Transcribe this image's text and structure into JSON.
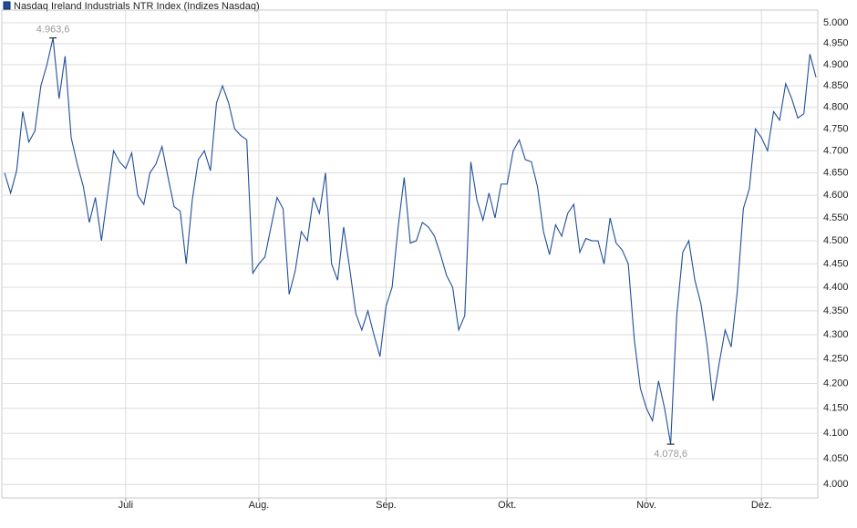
{
  "chart_data": {
    "type": "line",
    "log_scale": true,
    "grid": true,
    "legend": "top-left",
    "categories": [
      null,
      null,
      null,
      null,
      null,
      null,
      null,
      null,
      null,
      null,
      null,
      null,
      null,
      null,
      null,
      null,
      null,
      null,
      null,
      null,
      "Juli",
      null,
      null,
      null,
      null,
      null,
      null,
      null,
      null,
      null,
      null,
      null,
      null,
      null,
      null,
      null,
      null,
      null,
      null,
      null,
      null,
      null,
      "Aug.",
      null,
      null,
      null,
      null,
      null,
      null,
      null,
      null,
      null,
      null,
      null,
      null,
      null,
      null,
      null,
      null,
      null,
      null,
      null,
      null,
      "Sep.",
      null,
      null,
      null,
      null,
      null,
      null,
      null,
      null,
      null,
      null,
      null,
      null,
      null,
      null,
      null,
      null,
      null,
      null,
      null,
      "Okt.",
      null,
      null,
      null,
      null,
      null,
      null,
      null,
      null,
      null,
      null,
      null,
      null,
      null,
      null,
      null,
      null,
      null,
      null,
      null,
      null,
      null,
      null,
      "Nov.",
      null,
      null,
      null,
      null,
      null,
      null,
      null,
      null,
      null,
      null,
      null,
      null,
      null,
      null,
      null,
      null,
      null,
      null,
      "Dez.",
      null,
      null,
      null,
      null,
      null,
      null,
      null,
      null,
      null
    ],
    "series": [
      {
        "name": "Nasdaq Ireland Industrials NTR Index  (Indizes Nasdaq)",
        "color": "#1f4f99",
        "values": [
          4650,
          4605,
          4655,
          4790,
          4720,
          4745,
          4850,
          4900,
          4963.6,
          4820,
          4920,
          4730,
          4670,
          4620,
          4540,
          4595,
          4500,
          4600,
          4700,
          4675,
          4660,
          4695,
          4600,
          4580,
          4650,
          4670,
          4710,
          4640,
          4575,
          4565,
          4450,
          4590,
          4680,
          4700,
          4655,
          4810,
          4850,
          4810,
          4750,
          4735,
          4725,
          4430,
          4450,
          4465,
          4530,
          4595,
          4570,
          4385,
          4435,
          4520,
          4500,
          4595,
          4560,
          4650,
          4450,
          4415,
          4530,
          4440,
          4345,
          4310,
          4350,
          4300,
          4255,
          4360,
          4400,
          4530,
          4640,
          4495,
          4500,
          4540,
          4530,
          4510,
          4470,
          4425,
          4400,
          4310,
          4340,
          4675,
          4590,
          4545,
          4605,
          4550,
          4625,
          4625,
          4700,
          4725,
          4680,
          4675,
          4620,
          4520,
          4470,
          4535,
          4510,
          4560,
          4580,
          4475,
          4505,
          4500,
          4500,
          4450,
          4550,
          4495,
          4480,
          4450,
          4290,
          4190,
          4150,
          4125,
          4205,
          4150,
          4078.6,
          4340,
          4475,
          4500,
          4415,
          4365,
          4280,
          4165,
          4240,
          4310,
          4275,
          4390,
          4570,
          4615,
          4750,
          4730,
          4700,
          4790,
          4770,
          4855,
          4820,
          4775,
          4785,
          4925,
          4870
        ],
        "value_labels": [
          null,
          null,
          null,
          null,
          null,
          null,
          null,
          null,
          "4.963,6",
          null,
          null,
          null,
          null,
          null,
          null,
          null,
          null,
          null,
          null,
          null,
          null,
          null,
          null,
          null,
          null,
          null,
          null,
          null,
          null,
          null,
          null,
          null,
          null,
          null,
          null,
          null,
          null,
          null,
          null,
          null,
          null,
          null,
          null,
          null,
          null,
          null,
          null,
          null,
          null,
          null,
          null,
          null,
          null,
          null,
          null,
          null,
          null,
          null,
          null,
          null,
          null,
          null,
          null,
          null,
          null,
          null,
          null,
          null,
          null,
          null,
          null,
          null,
          null,
          null,
          null,
          null,
          null,
          null,
          null,
          null,
          null,
          null,
          null,
          null,
          null,
          null,
          null,
          null,
          null,
          null,
          null,
          null,
          null,
          null,
          null,
          null,
          null,
          null,
          null,
          null,
          null,
          null,
          null,
          null,
          null,
          null,
          null,
          null,
          null,
          null,
          "4.078,6",
          null,
          null,
          null,
          null,
          null,
          null,
          null,
          null,
          null,
          null,
          null,
          null,
          null,
          null,
          null,
          null,
          null,
          null,
          null,
          null,
          null,
          null,
          null,
          null
        ]
      }
    ],
    "ylim": [
      3974,
      5031
    ],
    "yticks": [
      {
        "value": 4000,
        "label": "4.000"
      },
      {
        "value": 4050,
        "label": "4.050"
      },
      {
        "value": 4100,
        "label": "4.100"
      },
      {
        "value": 4150,
        "label": "4.150"
      },
      {
        "value": 4200,
        "label": "4.200"
      },
      {
        "value": 4250,
        "label": "4.250"
      },
      {
        "value": 4300,
        "label": "4.300"
      },
      {
        "value": 4350,
        "label": "4.350"
      },
      {
        "value": 4400,
        "label": "4.400"
      },
      {
        "value": 4450,
        "label": "4.450"
      },
      {
        "value": 4500,
        "label": "4.500"
      },
      {
        "value": 4550,
        "label": "4.550"
      },
      {
        "value": 4600,
        "label": "4.600"
      },
      {
        "value": 4650,
        "label": "4.650"
      },
      {
        "value": 4700,
        "label": "4.700"
      },
      {
        "value": 4750,
        "label": "4.750"
      },
      {
        "value": 4800,
        "label": "4.800"
      },
      {
        "value": 4850,
        "label": "4.850"
      },
      {
        "value": 4900,
        "label": "4.900"
      },
      {
        "value": 4950,
        "label": "4.950"
      },
      {
        "value": 5000,
        "label": "5.000"
      }
    ]
  }
}
